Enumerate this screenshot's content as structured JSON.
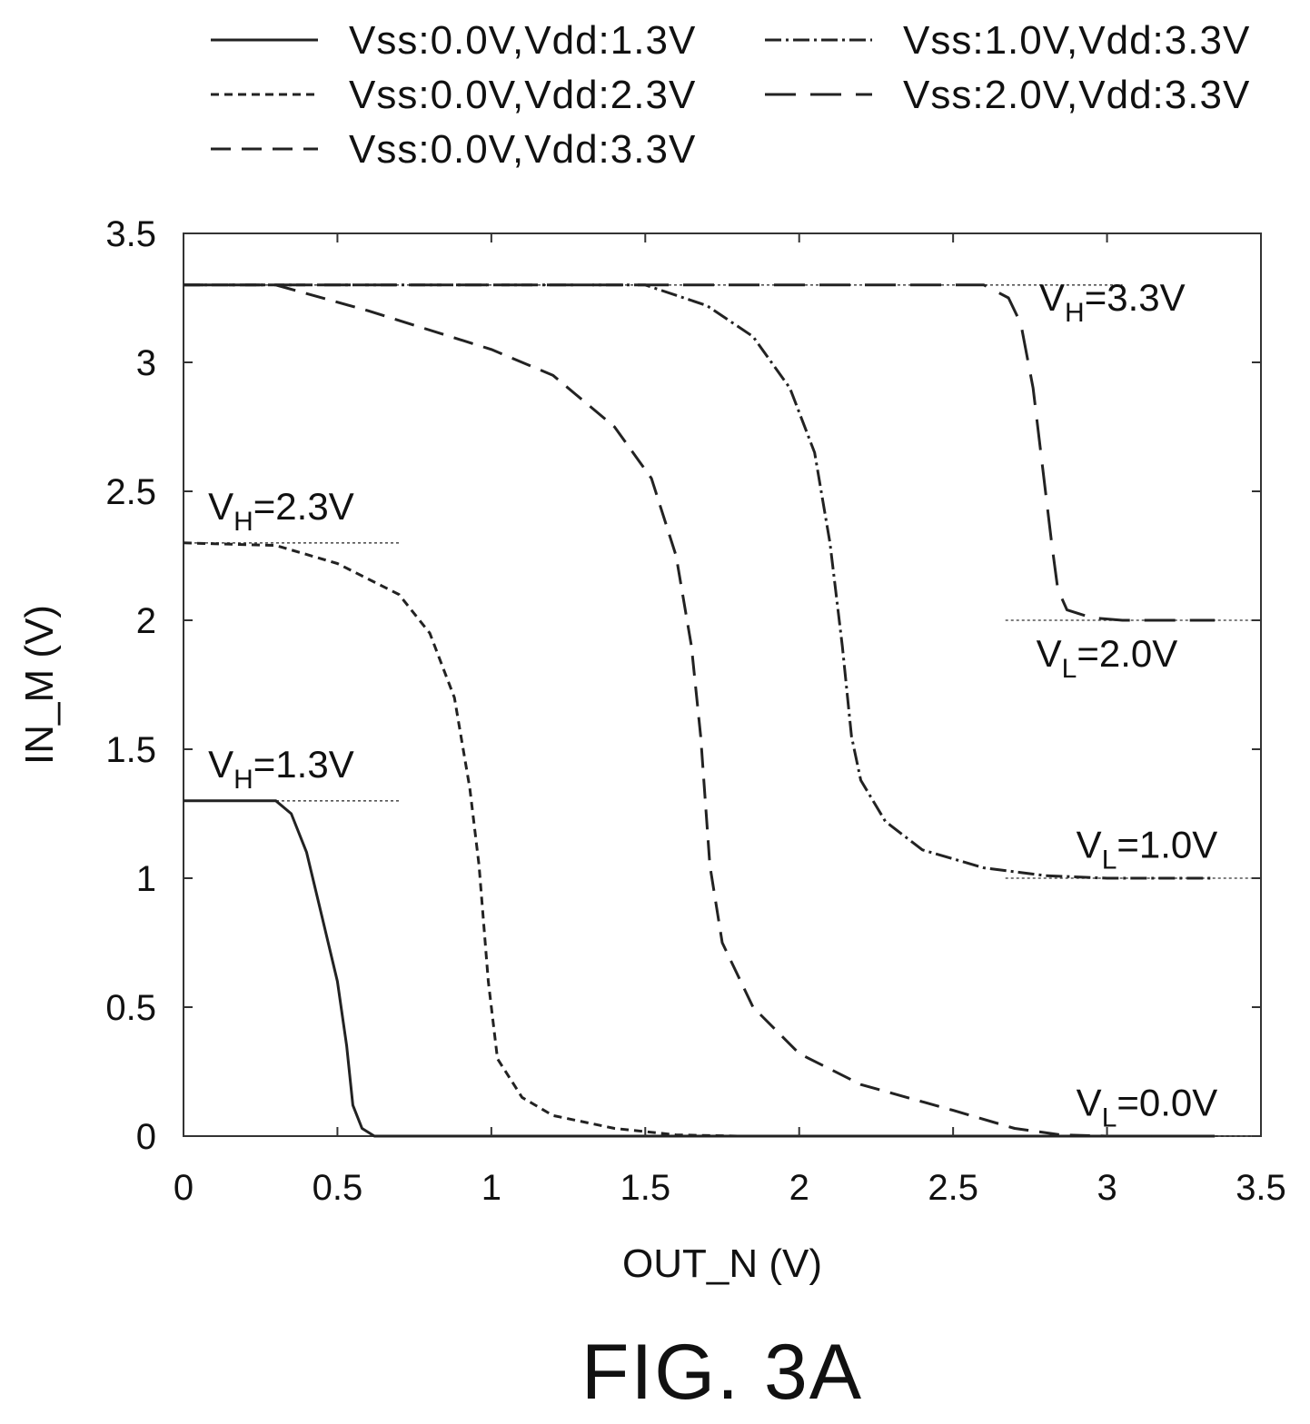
{
  "figure_label": "FIG. 3A",
  "chart_data": {
    "type": "line",
    "xlabel": "OUT_N (V)",
    "ylabel": "IN_M (V)",
    "xlim": [
      0,
      3.5
    ],
    "ylim": [
      0,
      3.5
    ],
    "xticks": [
      "0",
      "0.5",
      "1",
      "1.5",
      "2",
      "2.5",
      "3",
      "3.5"
    ],
    "yticks": [
      "0",
      "0.5",
      "1",
      "1.5",
      "2",
      "2.5",
      "3",
      "3.5"
    ],
    "grid": false,
    "legend_position": "top",
    "series": [
      {
        "name": "Vss:0.0V,Vdd:1.3V",
        "dash": "solid",
        "points": [
          [
            0,
            1.3
          ],
          [
            0.3,
            1.3
          ],
          [
            0.35,
            1.25
          ],
          [
            0.4,
            1.1
          ],
          [
            0.45,
            0.85
          ],
          [
            0.5,
            0.6
          ],
          [
            0.53,
            0.35
          ],
          [
            0.55,
            0.12
          ],
          [
            0.58,
            0.03
          ],
          [
            0.62,
            0
          ],
          [
            3.35,
            0
          ]
        ]
      },
      {
        "name": "Vss:0.0V,Vdd:2.3V",
        "dash": "short",
        "points": [
          [
            0,
            2.3
          ],
          [
            0.3,
            2.29
          ],
          [
            0.5,
            2.22
          ],
          [
            0.7,
            2.1
          ],
          [
            0.8,
            1.95
          ],
          [
            0.88,
            1.7
          ],
          [
            0.93,
            1.35
          ],
          [
            0.96,
            1.05
          ],
          [
            0.99,
            0.6
          ],
          [
            1.02,
            0.3
          ],
          [
            1.1,
            0.15
          ],
          [
            1.2,
            0.08
          ],
          [
            1.4,
            0.03
          ],
          [
            1.6,
            0.005
          ],
          [
            1.8,
            0
          ],
          [
            3.35,
            0
          ]
        ]
      },
      {
        "name": "Vss:0.0V,Vdd:3.3V",
        "dash": "medium",
        "points": [
          [
            0,
            3.3
          ],
          [
            0.3,
            3.3
          ],
          [
            0.6,
            3.2
          ],
          [
            1.0,
            3.05
          ],
          [
            1.2,
            2.95
          ],
          [
            1.4,
            2.75
          ],
          [
            1.52,
            2.55
          ],
          [
            1.6,
            2.25
          ],
          [
            1.65,
            1.9
          ],
          [
            1.68,
            1.55
          ],
          [
            1.71,
            1.05
          ],
          [
            1.75,
            0.75
          ],
          [
            1.85,
            0.5
          ],
          [
            2.0,
            0.32
          ],
          [
            2.2,
            0.2
          ],
          [
            2.5,
            0.1
          ],
          [
            2.7,
            0.03
          ],
          [
            2.85,
            0.005
          ],
          [
            3.0,
            0
          ],
          [
            3.35,
            0
          ]
        ]
      },
      {
        "name": "Vss:1.0V,Vdd:3.3V",
        "dash": "dashdot",
        "points": [
          [
            0,
            3.3
          ],
          [
            1.5,
            3.3
          ],
          [
            1.7,
            3.22
          ],
          [
            1.85,
            3.1
          ],
          [
            1.97,
            2.9
          ],
          [
            2.05,
            2.65
          ],
          [
            2.1,
            2.3
          ],
          [
            2.14,
            1.9
          ],
          [
            2.17,
            1.55
          ],
          [
            2.2,
            1.38
          ],
          [
            2.28,
            1.22
          ],
          [
            2.4,
            1.11
          ],
          [
            2.6,
            1.04
          ],
          [
            2.8,
            1.01
          ],
          [
            3.0,
            1.0
          ],
          [
            3.35,
            1.0
          ]
        ]
      },
      {
        "name": "Vss:2.0V,Vdd:3.3V",
        "dash": "long",
        "points": [
          [
            0,
            3.3
          ],
          [
            2.6,
            3.3
          ],
          [
            2.68,
            3.25
          ],
          [
            2.72,
            3.15
          ],
          [
            2.76,
            2.9
          ],
          [
            2.79,
            2.6
          ],
          [
            2.82,
            2.3
          ],
          [
            2.84,
            2.12
          ],
          [
            2.87,
            2.04
          ],
          [
            2.95,
            2.01
          ],
          [
            3.05,
            2.0
          ],
          [
            3.35,
            2.0
          ]
        ]
      }
    ],
    "reference_lines": [
      {
        "y": 3.3,
        "x": [
          0,
          3.05
        ]
      },
      {
        "y": 2.3,
        "x": [
          0,
          0.7
        ]
      },
      {
        "y": 1.3,
        "x": [
          0,
          0.7
        ]
      },
      {
        "y": 2.0,
        "x": [
          2.67,
          3.47
        ]
      },
      {
        "y": 1.0,
        "x": [
          2.67,
          3.47
        ]
      },
      {
        "y": 0.0,
        "x": [
          2.67,
          3.47
        ]
      }
    ],
    "annotations": [
      {
        "main": "V",
        "sub": "H",
        "rest": "=3.3V",
        "x": 2.78,
        "y": 3.2
      },
      {
        "main": "V",
        "sub": "H",
        "rest": "=2.3V",
        "x": 0.08,
        "y": 2.39
      },
      {
        "main": "V",
        "sub": "H",
        "rest": "=1.3V",
        "x": 0.08,
        "y": 1.39
      },
      {
        "main": "V",
        "sub": "L",
        "rest": "=2.0V",
        "x": 2.77,
        "y": 1.82
      },
      {
        "main": "V",
        "sub": "L",
        "rest": "=1.0V",
        "x": 2.9,
        "y": 1.08
      },
      {
        "main": "V",
        "sub": "L",
        "rest": "=0.0V",
        "x": 2.9,
        "y": 0.08
      }
    ]
  }
}
